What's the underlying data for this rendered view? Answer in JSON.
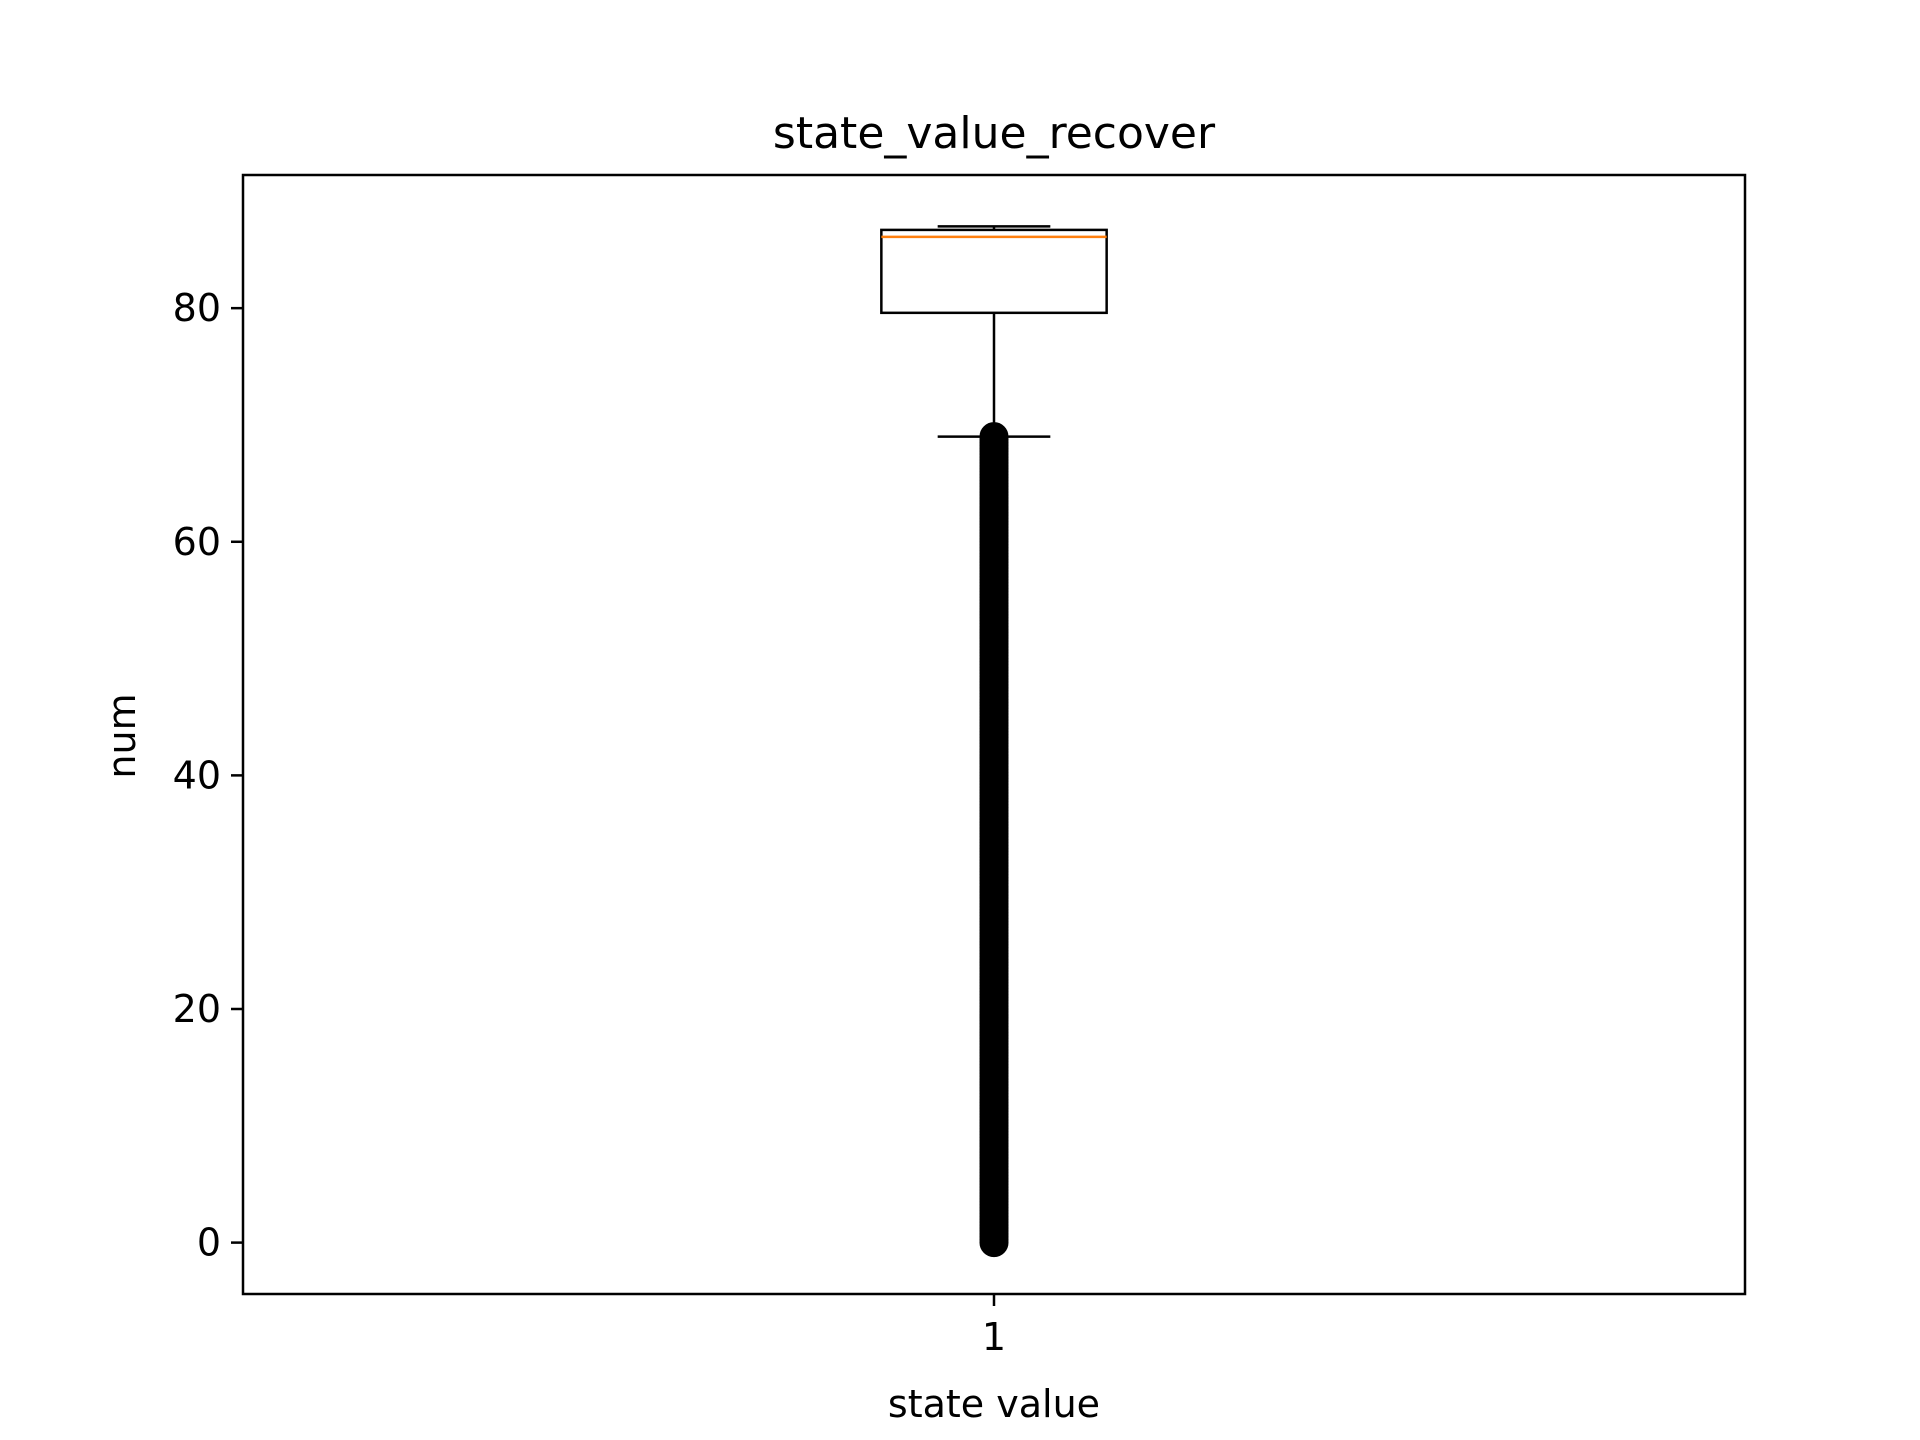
{
  "chart_data": {
    "type": "boxplot",
    "title": "state_value_recover",
    "xlabel": "state value",
    "ylabel": "num",
    "ylim": [
      -4.4,
      91.4
    ],
    "yticks": [
      0,
      20,
      40,
      60,
      80
    ],
    "categories": [
      "1"
    ],
    "grid": false,
    "legend": "none",
    "boxes": [
      {
        "category": "1",
        "whisker_low": 69,
        "q1": 79.6,
        "median": 86.1,
        "q3": 86.7,
        "whisker_high": 87,
        "outliers_range": [
          0,
          69
        ]
      }
    ],
    "colors": {
      "box": "#000000",
      "median": "#ff7f0e",
      "outliers": "#000000"
    }
  }
}
